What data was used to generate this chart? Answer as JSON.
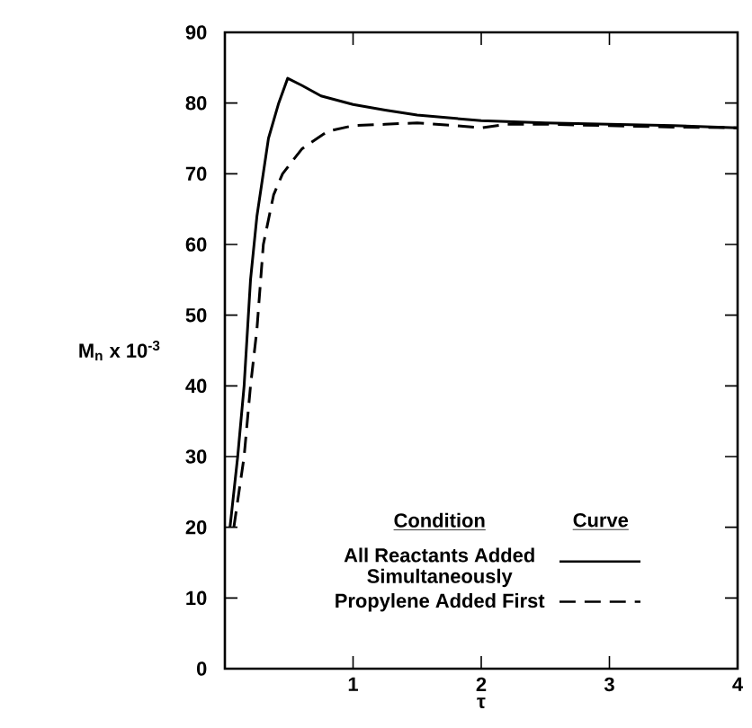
{
  "chart_data": {
    "type": "line",
    "xlabel": "τ",
    "ylabel": "M$_{n}$ x 10$^{-3}$",
    "legend_title": "Condition",
    "annotations": [
      "Curve"
    ],
    "legend": "bottom",
    "xlim": [
      0,
      4
    ],
    "ylim": [
      0,
      90
    ],
    "xticks": [
      1,
      2,
      3,
      4
    ],
    "yticks": [
      0,
      10,
      20,
      30,
      40,
      50,
      60,
      70,
      80,
      90
    ],
    "grid": false,
    "series": [
      {
        "name": "All Reactants Added Simultaneously",
        "color": "#000000",
        "line_style": "solid",
        "x": [
          0.04,
          0.1,
          0.15,
          0.2,
          0.25,
          0.34,
          0.42,
          0.49,
          0.6,
          0.75,
          1.0,
          1.25,
          1.5,
          2.0,
          2.5,
          3.0,
          3.5,
          4.0
        ],
        "values": [
          20,
          30,
          40,
          55,
          64,
          75,
          80,
          83.5,
          82.5,
          81,
          79.8,
          79,
          78.3,
          77.5,
          77.2,
          77,
          76.8,
          76.5
        ]
      },
      {
        "name": "Propylene Added First",
        "color": "#000000",
        "line_style": "dashed",
        "x": [
          0.07,
          0.15,
          0.2,
          0.25,
          0.3,
          0.38,
          0.45,
          0.6,
          0.8,
          1.0,
          1.25,
          1.5,
          1.8,
          2.0,
          2.2,
          2.5,
          3.0,
          3.5,
          4.0
        ],
        "values": [
          20,
          30,
          40,
          48,
          60,
          67,
          70,
          73.5,
          76,
          76.8,
          77,
          77.2,
          76.8,
          76.5,
          77,
          77,
          76.8,
          76.6,
          76.5
        ]
      }
    ]
  }
}
